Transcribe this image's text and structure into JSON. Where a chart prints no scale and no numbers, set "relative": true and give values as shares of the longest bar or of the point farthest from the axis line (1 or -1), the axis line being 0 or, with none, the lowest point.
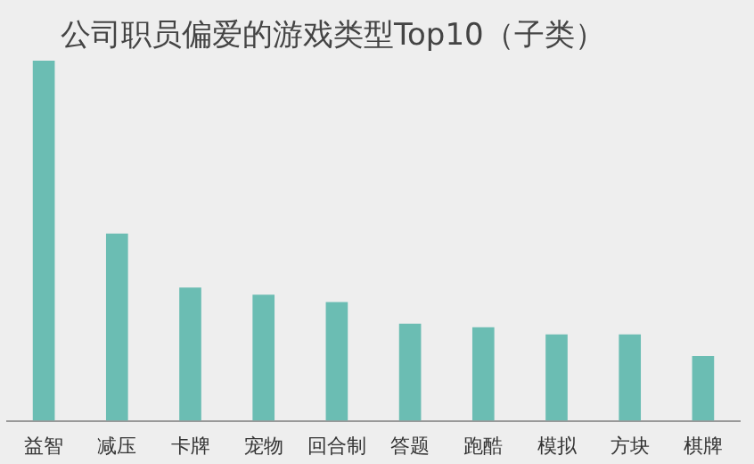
{
  "chart_data": {
    "type": "bar",
    "title": "公司职员偏爱的游戏类型Top10（子类）",
    "relative": true,
    "categories": [
      "益智",
      "减压",
      "卡牌",
      "宠物",
      "回合制",
      "答题",
      "跑酷",
      "模拟",
      "方块",
      "棋牌"
    ],
    "values": [
      1,
      0.52,
      0.37,
      0.35,
      0.33,
      0.27,
      0.26,
      0.24,
      0.24,
      0.18
    ],
    "color": "#6bbdb3",
    "grid": false,
    "legend": false
  }
}
